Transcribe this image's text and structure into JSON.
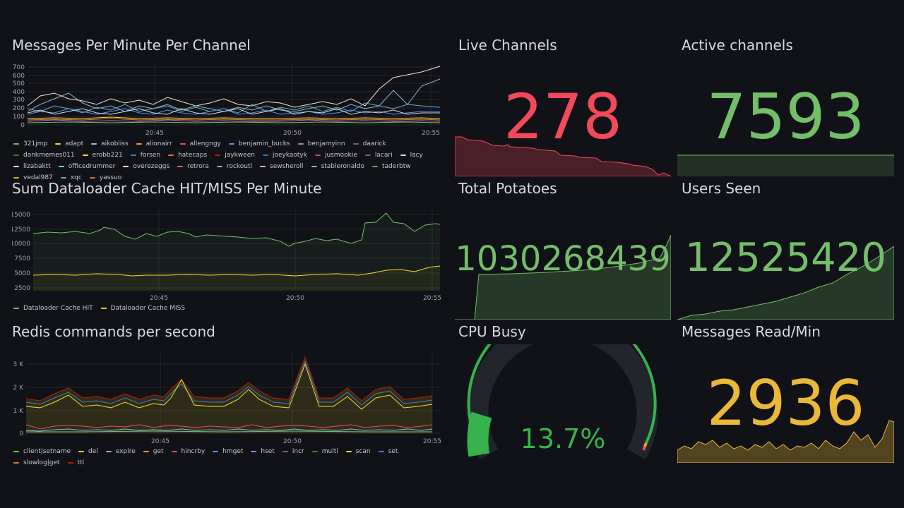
{
  "colors": {
    "background": "#111217",
    "grid": "#24262d",
    "red": "#f2495c",
    "green": "#73bf69",
    "yellow": "#fade2a",
    "orange_yellow": "#eab839",
    "gauge_green": "#37b24d"
  },
  "panels": {
    "messages_per_minute": {
      "title": "Messages Per Minute Per Channel",
      "y_ticks": [
        "700",
        "600",
        "500",
        "400",
        "300",
        "200",
        "100",
        "0"
      ],
      "x_ticks": [
        "20:45",
        "20:50",
        "20:55"
      ],
      "legend": [
        {
          "name": "321jmp",
          "color": "#73bf69"
        },
        {
          "name": "adapt",
          "color": "#fade2a"
        },
        {
          "name": "aikobliss",
          "color": "#8ab8ff"
        },
        {
          "name": "alionairr",
          "color": "#ff9830"
        },
        {
          "name": "allengngy",
          "color": "#f2495c"
        },
        {
          "name": "benjamin_bucks",
          "color": "#5794f2"
        },
        {
          "name": "benjamyinn",
          "color": "#b877d9"
        },
        {
          "name": "daarick",
          "color": "#705da0"
        },
        {
          "name": "dankmemes011",
          "color": "#37872d"
        },
        {
          "name": "erobb221",
          "color": "#fade2a"
        },
        {
          "name": "forsen",
          "color": "#447ebc"
        },
        {
          "name": "hatecaps",
          "color": "#e0752d"
        },
        {
          "name": "jaykween",
          "color": "#bf1b00"
        },
        {
          "name": "joeykaotyk",
          "color": "#1f78c1"
        },
        {
          "name": "jusmookie",
          "color": "#ba43a9"
        },
        {
          "name": "lacari",
          "color": "#705da0"
        },
        {
          "name": "lacy",
          "color": "#badff4"
        },
        {
          "name": "lizabaktt",
          "color": "#f9d9f9"
        },
        {
          "name": "officedrummer",
          "color": "#6ed0e0"
        },
        {
          "name": "overezeggs",
          "color": "#f9e2d2"
        },
        {
          "name": "retrora",
          "color": "#ea6460"
        },
        {
          "name": "rockoutl",
          "color": "#82b5d8"
        },
        {
          "name": "sewsheroll",
          "color": "#e5a8e2"
        },
        {
          "name": "stableronaldo",
          "color": "#aea2e0"
        },
        {
          "name": "taderbtw",
          "color": "#629e51"
        },
        {
          "name": "vedal987",
          "color": "#e5ac0e"
        },
        {
          "name": "xqc",
          "color": "#64b0c8"
        },
        {
          "name": "yassuo",
          "color": "#e0752d"
        }
      ]
    },
    "dataloader": {
      "title": "Sum Dataloader Cache HIT/MISS Per Minute",
      "y_ticks": [
        "15000",
        "12500",
        "10000",
        "7500",
        "5000",
        "2500"
      ],
      "x_ticks": [
        "20:45",
        "20:50",
        "20:55"
      ],
      "legend": [
        {
          "name": "Dataloader Cache HIT",
          "color": "#73bf69"
        },
        {
          "name": "Dataloader Cache MISS",
          "color": "#fade2a"
        }
      ]
    },
    "redis": {
      "title": "Redis commands per second",
      "y_ticks": [
        "3 K",
        "2 K",
        "1 K",
        "0"
      ],
      "x_ticks": [
        "20:45",
        "20:50",
        "20:55"
      ],
      "legend": [
        {
          "name": "client|setname",
          "color": "#73bf69"
        },
        {
          "name": "del",
          "color": "#fade2a"
        },
        {
          "name": "expire",
          "color": "#8ab8ff"
        },
        {
          "name": "get",
          "color": "#ff9830"
        },
        {
          "name": "hincrby",
          "color": "#f2495c"
        },
        {
          "name": "hmget",
          "color": "#5794f2"
        },
        {
          "name": "hset",
          "color": "#b877d9"
        },
        {
          "name": "incr",
          "color": "#705da0"
        },
        {
          "name": "multi",
          "color": "#37872d"
        },
        {
          "name": "scan",
          "color": "#fade2a"
        },
        {
          "name": "set",
          "color": "#447ebc"
        },
        {
          "name": "slowlog|get",
          "color": "#e0752d"
        },
        {
          "name": "ttl",
          "color": "#bf1b00"
        }
      ]
    },
    "live_channels": {
      "title": "Live Channels",
      "value": "278",
      "color": "#f2495c"
    },
    "active_channels": {
      "title": "Active channels",
      "value": "7593",
      "color": "#73bf69"
    },
    "total_potatoes": {
      "title": "Total Potatoes",
      "value": "1030268439",
      "color": "#73bf69"
    },
    "users_seen": {
      "title": "Users Seen",
      "value": "12525420",
      "color": "#73bf69"
    },
    "cpu_busy": {
      "title": "CPU Busy",
      "value": "13.7%",
      "percent": 13.7,
      "color": "#37b24d"
    },
    "messages_read": {
      "title": "Messages Read/Min",
      "value": "2936",
      "color": "#eab839"
    }
  }
}
